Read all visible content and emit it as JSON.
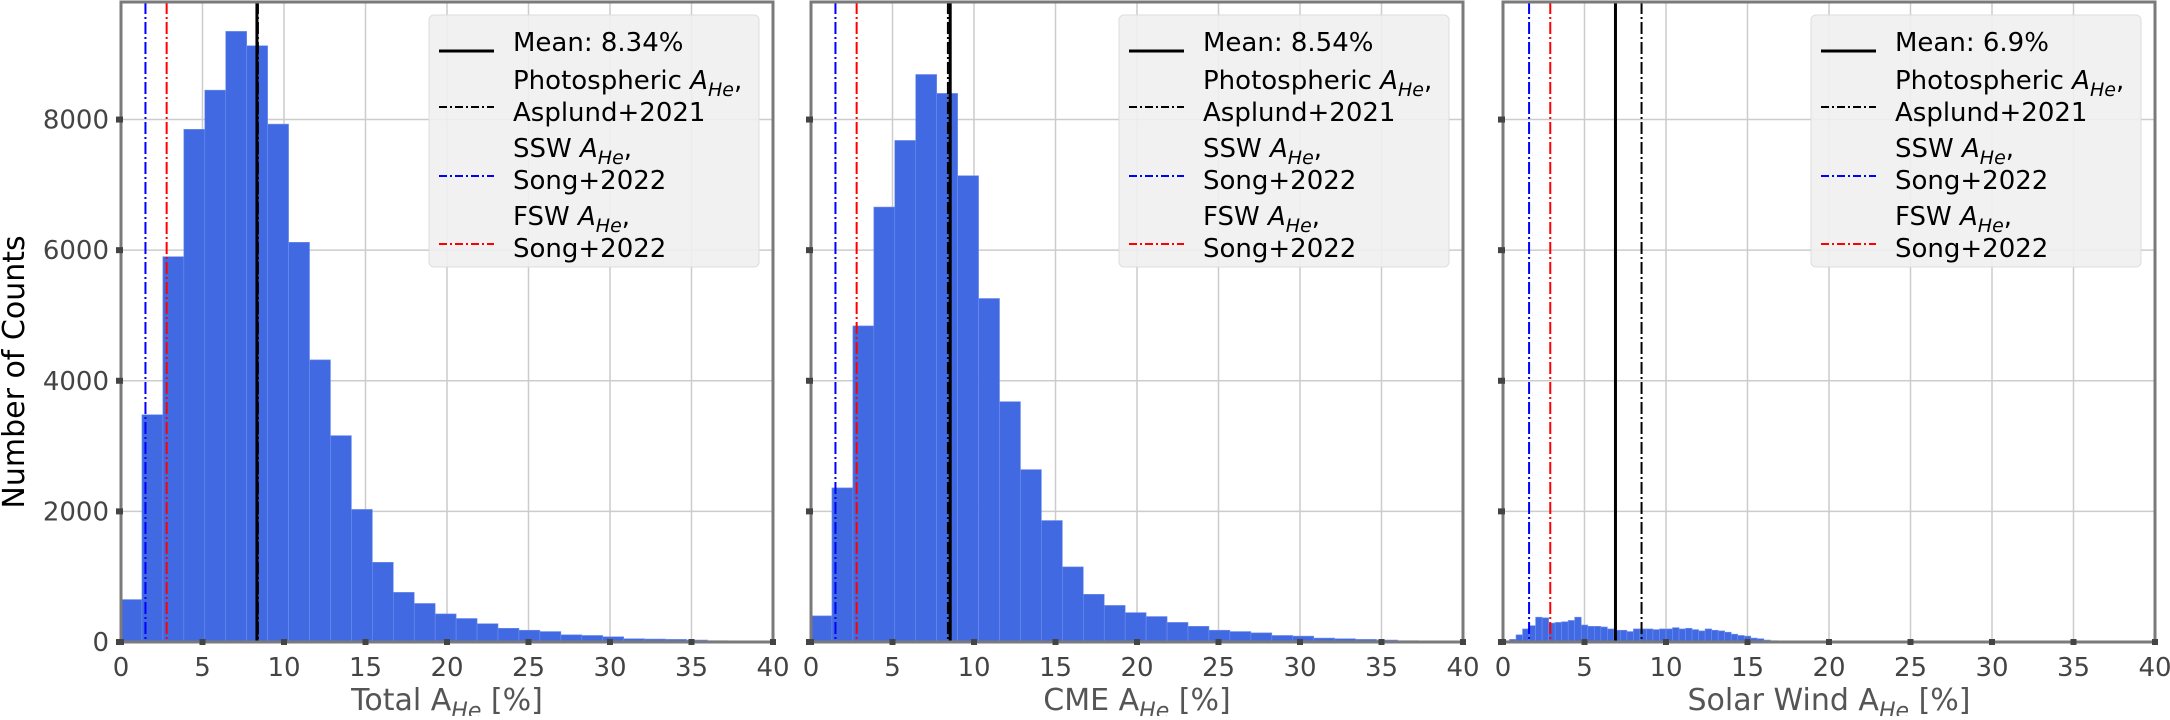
{
  "figure": {
    "ylabel": "Number of Counts",
    "colors": {
      "bar": "#4169e1",
      "bar_edge": "#6f8ff0",
      "mean": "#000000",
      "photospheric": "#000000",
      "ssw": "#0000ff",
      "fsw": "#ff0000",
      "grid": "#cccccc",
      "axis": "#7a7a7a",
      "tick_label": "#444444",
      "legend_bg": "#efefef"
    }
  },
  "chart_data": [
    {
      "type": "bar",
      "panel": "total",
      "title": "",
      "xlabel": "Total A_He [%]",
      "xlabel_main": "Total A",
      "xlabel_sub": "He",
      "xlabel_tail": " [%]",
      "ylabel": "Number of Counts",
      "xlim": [
        0,
        40
      ],
      "ylim": [
        0,
        9800
      ],
      "xticks": [
        0,
        5,
        10,
        15,
        20,
        25,
        30,
        35,
        40
      ],
      "yticks": [
        0,
        2000,
        4000,
        6000,
        8000
      ],
      "show_yticklabels": true,
      "grid": true,
      "bin_width": 1.285,
      "bin_start": 0,
      "values": [
        650,
        3480,
        5900,
        7850,
        8450,
        9350,
        9130,
        7930,
        6120,
        4320,
        3160,
        2030,
        1220,
        760,
        590,
        430,
        360,
        280,
        210,
        180,
        160,
        110,
        100,
        80,
        50,
        45,
        40,
        30,
        20,
        15,
        10
      ],
      "vlines": [
        {
          "name": "mean",
          "x": 8.34,
          "style": "solid"
        },
        {
          "name": "photospheric",
          "x": 8.4,
          "style": "dashdot"
        },
        {
          "name": "ssw",
          "x": 1.5,
          "style": "dashdot"
        },
        {
          "name": "fsw",
          "x": 2.8,
          "style": "dashdot"
        }
      ],
      "legend": {
        "position": "upper right",
        "entries": [
          {
            "key": "mean",
            "line1": "Mean: 8.34%",
            "line2": ""
          },
          {
            "key": "photospheric",
            "line1": "Photospheric ",
            "line2": "Asplund+2021",
            "math": true
          },
          {
            "key": "ssw",
            "line1": "SSW ",
            "line2": "Song+2022",
            "math": true
          },
          {
            "key": "fsw",
            "line1": "FSW ",
            "line2": "Song+2022",
            "math": true
          }
        ]
      }
    },
    {
      "type": "bar",
      "panel": "cme",
      "title": "",
      "xlabel": "CME A_He [%]",
      "xlabel_main": "CME A",
      "xlabel_sub": "He",
      "xlabel_tail": " [%]",
      "ylabel": "",
      "xlim": [
        0,
        40
      ],
      "ylim": [
        0,
        9800
      ],
      "xticks": [
        0,
        5,
        10,
        15,
        20,
        25,
        30,
        35,
        40
      ],
      "yticks": [
        0,
        2000,
        4000,
        6000,
        8000
      ],
      "show_yticklabels": false,
      "grid": true,
      "bin_width": 1.285,
      "bin_start": 0,
      "values": [
        400,
        2360,
        4840,
        6660,
        7680,
        8690,
        8400,
        7140,
        5260,
        3680,
        2640,
        1860,
        1150,
        730,
        560,
        450,
        390,
        300,
        240,
        180,
        160,
        140,
        100,
        90,
        60,
        50,
        40,
        30,
        20,
        15,
        10
      ],
      "vlines": [
        {
          "name": "mean",
          "x": 8.54,
          "style": "solid"
        },
        {
          "name": "photospheric",
          "x": 8.4,
          "style": "dashdot"
        },
        {
          "name": "ssw",
          "x": 1.5,
          "style": "dashdot"
        },
        {
          "name": "fsw",
          "x": 2.8,
          "style": "dashdot"
        }
      ],
      "legend": {
        "position": "upper right",
        "entries": [
          {
            "key": "mean",
            "line1": "Mean: 8.54%",
            "line2": ""
          },
          {
            "key": "photospheric",
            "line1": "Photospheric ",
            "line2": "Asplund+2021",
            "math": true
          },
          {
            "key": "ssw",
            "line1": "SSW ",
            "line2": "Song+2022",
            "math": true
          },
          {
            "key": "fsw",
            "line1": "FSW ",
            "line2": "Song+2022",
            "math": true
          }
        ]
      }
    },
    {
      "type": "bar",
      "panel": "solar_wind",
      "title": "",
      "xlabel": "Solar Wind A_He [%]",
      "xlabel_main": "Solar Wind A",
      "xlabel_sub": "He",
      "xlabel_tail": " [%]",
      "ylabel": "",
      "xlim": [
        0,
        40
      ],
      "ylim": [
        0,
        9800
      ],
      "xticks": [
        0,
        5,
        10,
        15,
        20,
        25,
        30,
        35,
        40
      ],
      "yticks": [
        0,
        2000,
        4000,
        6000,
        8000
      ],
      "show_yticklabels": false,
      "grid": true,
      "bin_width": 0.4,
      "bin_start": 0,
      "values": [
        20,
        40,
        110,
        200,
        250,
        380,
        370,
        290,
        300,
        310,
        330,
        380,
        260,
        240,
        240,
        230,
        200,
        180,
        180,
        160,
        200,
        200,
        200,
        190,
        200,
        200,
        220,
        200,
        210,
        190,
        170,
        200,
        180,
        170,
        150,
        120,
        100,
        90,
        60,
        50,
        30,
        20,
        10,
        5,
        5,
        3,
        2
      ],
      "vlines": [
        {
          "name": "mean",
          "x": 6.9,
          "style": "solid"
        },
        {
          "name": "photospheric",
          "x": 8.5,
          "style": "dashdot"
        },
        {
          "name": "ssw",
          "x": 1.6,
          "style": "dashdot"
        },
        {
          "name": "fsw",
          "x": 2.9,
          "style": "dashdot"
        }
      ],
      "legend": {
        "position": "upper right",
        "entries": [
          {
            "key": "mean",
            "line1": "Mean: 6.9%",
            "line2": ""
          },
          {
            "key": "photospheric",
            "line1": "Photospheric ",
            "line2": "Asplund+2021",
            "math": true
          },
          {
            "key": "ssw",
            "line1": "SSW ",
            "line2": "Song+2022",
            "math": true
          },
          {
            "key": "fsw",
            "line1": "FSW ",
            "line2": "Song+2022",
            "math": true
          }
        ]
      }
    }
  ]
}
